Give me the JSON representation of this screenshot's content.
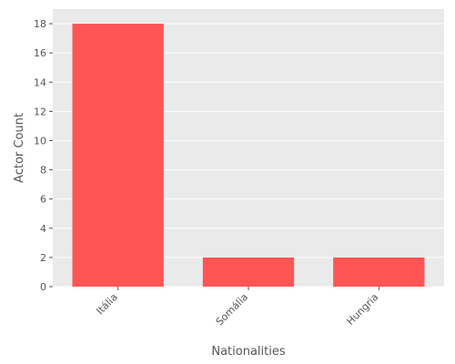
{
  "chart_data": {
    "type": "bar",
    "title": "",
    "xlabel": "Nationalities",
    "ylabel": "Actor Count",
    "categories": [
      "Itália",
      "Somália",
      "Hungria"
    ],
    "values": [
      18,
      2,
      2
    ],
    "ylim": [
      0,
      19
    ],
    "yticks": [
      0,
      2,
      4,
      6,
      8,
      10,
      12,
      14,
      16,
      18
    ],
    "grid": true,
    "colors": {
      "bar": "#ff5555",
      "plot_background": "#eaeaea",
      "grid": "#ffffff"
    }
  }
}
